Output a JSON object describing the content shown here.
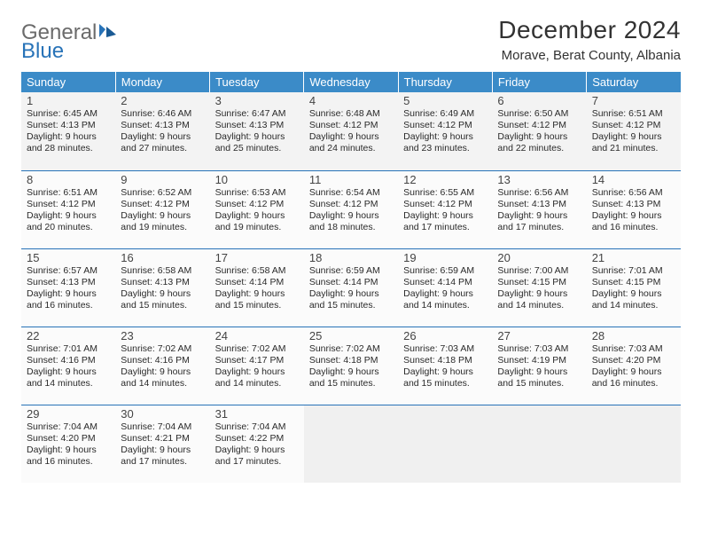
{
  "logo": {
    "word1": "General",
    "word2": "Blue"
  },
  "title": "December 2024",
  "location": "Morave, Berat County, Albania",
  "colors": {
    "header_bg": "#3b8bc8",
    "header_text": "#ffffff",
    "border": "#2873b8",
    "logo_gray": "#6b6b6b",
    "logo_blue": "#2873b8",
    "text": "#2a2a2a"
  },
  "day_headers": [
    "Sunday",
    "Monday",
    "Tuesday",
    "Wednesday",
    "Thursday",
    "Friday",
    "Saturday"
  ],
  "weeks": [
    [
      {
        "n": "1",
        "sr": "Sunrise: 6:45 AM",
        "ss": "Sunset: 4:13 PM",
        "d1": "Daylight: 9 hours",
        "d2": "and 28 minutes."
      },
      {
        "n": "2",
        "sr": "Sunrise: 6:46 AM",
        "ss": "Sunset: 4:13 PM",
        "d1": "Daylight: 9 hours",
        "d2": "and 27 minutes."
      },
      {
        "n": "3",
        "sr": "Sunrise: 6:47 AM",
        "ss": "Sunset: 4:13 PM",
        "d1": "Daylight: 9 hours",
        "d2": "and 25 minutes."
      },
      {
        "n": "4",
        "sr": "Sunrise: 6:48 AM",
        "ss": "Sunset: 4:12 PM",
        "d1": "Daylight: 9 hours",
        "d2": "and 24 minutes."
      },
      {
        "n": "5",
        "sr": "Sunrise: 6:49 AM",
        "ss": "Sunset: 4:12 PM",
        "d1": "Daylight: 9 hours",
        "d2": "and 23 minutes."
      },
      {
        "n": "6",
        "sr": "Sunrise: 6:50 AM",
        "ss": "Sunset: 4:12 PM",
        "d1": "Daylight: 9 hours",
        "d2": "and 22 minutes."
      },
      {
        "n": "7",
        "sr": "Sunrise: 6:51 AM",
        "ss": "Sunset: 4:12 PM",
        "d1": "Daylight: 9 hours",
        "d2": "and 21 minutes."
      }
    ],
    [
      {
        "n": "8",
        "sr": "Sunrise: 6:51 AM",
        "ss": "Sunset: 4:12 PM",
        "d1": "Daylight: 9 hours",
        "d2": "and 20 minutes."
      },
      {
        "n": "9",
        "sr": "Sunrise: 6:52 AM",
        "ss": "Sunset: 4:12 PM",
        "d1": "Daylight: 9 hours",
        "d2": "and 19 minutes."
      },
      {
        "n": "10",
        "sr": "Sunrise: 6:53 AM",
        "ss": "Sunset: 4:12 PM",
        "d1": "Daylight: 9 hours",
        "d2": "and 19 minutes."
      },
      {
        "n": "11",
        "sr": "Sunrise: 6:54 AM",
        "ss": "Sunset: 4:12 PM",
        "d1": "Daylight: 9 hours",
        "d2": "and 18 minutes."
      },
      {
        "n": "12",
        "sr": "Sunrise: 6:55 AM",
        "ss": "Sunset: 4:12 PM",
        "d1": "Daylight: 9 hours",
        "d2": "and 17 minutes."
      },
      {
        "n": "13",
        "sr": "Sunrise: 6:56 AM",
        "ss": "Sunset: 4:13 PM",
        "d1": "Daylight: 9 hours",
        "d2": "and 17 minutes."
      },
      {
        "n": "14",
        "sr": "Sunrise: 6:56 AM",
        "ss": "Sunset: 4:13 PM",
        "d1": "Daylight: 9 hours",
        "d2": "and 16 minutes."
      }
    ],
    [
      {
        "n": "15",
        "sr": "Sunrise: 6:57 AM",
        "ss": "Sunset: 4:13 PM",
        "d1": "Daylight: 9 hours",
        "d2": "and 16 minutes."
      },
      {
        "n": "16",
        "sr": "Sunrise: 6:58 AM",
        "ss": "Sunset: 4:13 PM",
        "d1": "Daylight: 9 hours",
        "d2": "and 15 minutes."
      },
      {
        "n": "17",
        "sr": "Sunrise: 6:58 AM",
        "ss": "Sunset: 4:14 PM",
        "d1": "Daylight: 9 hours",
        "d2": "and 15 minutes."
      },
      {
        "n": "18",
        "sr": "Sunrise: 6:59 AM",
        "ss": "Sunset: 4:14 PM",
        "d1": "Daylight: 9 hours",
        "d2": "and 15 minutes."
      },
      {
        "n": "19",
        "sr": "Sunrise: 6:59 AM",
        "ss": "Sunset: 4:14 PM",
        "d1": "Daylight: 9 hours",
        "d2": "and 14 minutes."
      },
      {
        "n": "20",
        "sr": "Sunrise: 7:00 AM",
        "ss": "Sunset: 4:15 PM",
        "d1": "Daylight: 9 hours",
        "d2": "and 14 minutes."
      },
      {
        "n": "21",
        "sr": "Sunrise: 7:01 AM",
        "ss": "Sunset: 4:15 PM",
        "d1": "Daylight: 9 hours",
        "d2": "and 14 minutes."
      }
    ],
    [
      {
        "n": "22",
        "sr": "Sunrise: 7:01 AM",
        "ss": "Sunset: 4:16 PM",
        "d1": "Daylight: 9 hours",
        "d2": "and 14 minutes."
      },
      {
        "n": "23",
        "sr": "Sunrise: 7:02 AM",
        "ss": "Sunset: 4:16 PM",
        "d1": "Daylight: 9 hours",
        "d2": "and 14 minutes."
      },
      {
        "n": "24",
        "sr": "Sunrise: 7:02 AM",
        "ss": "Sunset: 4:17 PM",
        "d1": "Daylight: 9 hours",
        "d2": "and 14 minutes."
      },
      {
        "n": "25",
        "sr": "Sunrise: 7:02 AM",
        "ss": "Sunset: 4:18 PM",
        "d1": "Daylight: 9 hours",
        "d2": "and 15 minutes."
      },
      {
        "n": "26",
        "sr": "Sunrise: 7:03 AM",
        "ss": "Sunset: 4:18 PM",
        "d1": "Daylight: 9 hours",
        "d2": "and 15 minutes."
      },
      {
        "n": "27",
        "sr": "Sunrise: 7:03 AM",
        "ss": "Sunset: 4:19 PM",
        "d1": "Daylight: 9 hours",
        "d2": "and 15 minutes."
      },
      {
        "n": "28",
        "sr": "Sunrise: 7:03 AM",
        "ss": "Sunset: 4:20 PM",
        "d1": "Daylight: 9 hours",
        "d2": "and 16 minutes."
      }
    ],
    [
      {
        "n": "29",
        "sr": "Sunrise: 7:04 AM",
        "ss": "Sunset: 4:20 PM",
        "d1": "Daylight: 9 hours",
        "d2": "and 16 minutes."
      },
      {
        "n": "30",
        "sr": "Sunrise: 7:04 AM",
        "ss": "Sunset: 4:21 PM",
        "d1": "Daylight: 9 hours",
        "d2": "and 17 minutes."
      },
      {
        "n": "31",
        "sr": "Sunrise: 7:04 AM",
        "ss": "Sunset: 4:22 PM",
        "d1": "Daylight: 9 hours",
        "d2": "and 17 minutes."
      },
      null,
      null,
      null,
      null
    ]
  ]
}
